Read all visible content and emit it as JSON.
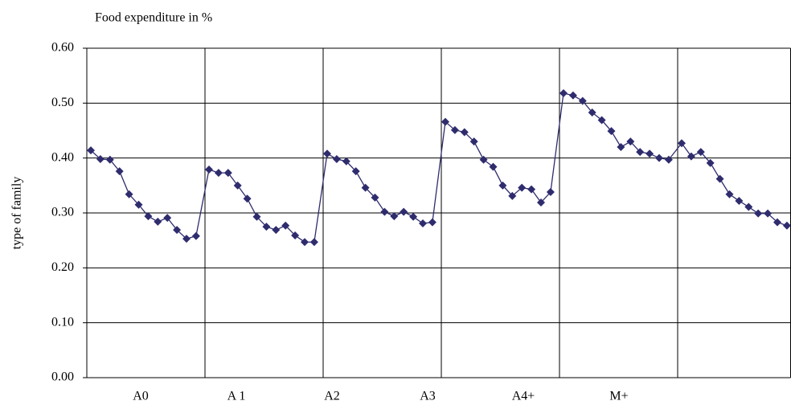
{
  "chart_data": {
    "type": "line",
    "title": "Food expenditure in %",
    "y_label": "type of family",
    "categories": [
      "A0",
      "A 1",
      "A2",
      "A3",
      "A4+",
      "M+",
      null
    ],
    "color": "#2f2c6e",
    "grid": true,
    "ylim": [
      0,
      0.6
    ],
    "yticks": [
      {
        "value": 0,
        "label": "0.00"
      },
      {
        "value": 0.1,
        "label": "0.10"
      },
      {
        "value": 0.2,
        "label": "0.20"
      },
      {
        "value": 0.3,
        "label": "0.30"
      },
      {
        "value": 0.4,
        "label": "0.40"
      },
      {
        "value": 0.5,
        "label": "0.50"
      },
      {
        "value": 0.6,
        "label": "0.60"
      }
    ],
    "values": [
      [
        0.414,
        0.398,
        0.397,
        0.376,
        0.334,
        0.315,
        0.294,
        0.284,
        0.291,
        0.269,
        0.253,
        0.258
      ],
      [
        0.379,
        0.373,
        0.373,
        0.35,
        0.326,
        0.293,
        0.275,
        0.269,
        0.277,
        0.259,
        0.247,
        0.247
      ],
      [
        0.408,
        0.398,
        0.394,
        0.376,
        0.346,
        0.328,
        0.302,
        0.294,
        0.302,
        0.293,
        0.281,
        0.283
      ],
      [
        0.466,
        0.451,
        0.447,
        0.43,
        0.397,
        0.384,
        0.35,
        0.331,
        0.346,
        0.343,
        0.319,
        0.338
      ],
      [
        0.518,
        0.514,
        0.504,
        0.483,
        0.469,
        0.449,
        0.42,
        0.43,
        0.411,
        0.408,
        0.4,
        0.397
      ],
      [
        0.427,
        0.403,
        0.411,
        0.391,
        0.362,
        0.334,
        0.322,
        0.311,
        0.299,
        0.299,
        0.283,
        0.277
      ]
    ]
  }
}
